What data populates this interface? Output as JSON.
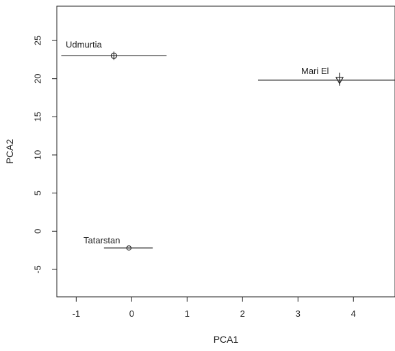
{
  "chart_data": {
    "type": "scatter",
    "xlabel": "PCA1",
    "ylabel": "PCA2",
    "xlim": [
      -1.35,
      4.75
    ],
    "ylim": [
      -8.6,
      29.5
    ],
    "xticks": [
      -1,
      0,
      1,
      2,
      3,
      4
    ],
    "yticks": [
      -5,
      0,
      5,
      10,
      15,
      20,
      25
    ],
    "grid": false,
    "points": [
      {
        "label": "Udmurtia",
        "x": -0.32,
        "y": 23.0,
        "xerr_low": -1.27,
        "xerr_high": 0.63,
        "marker": "circle-plus"
      },
      {
        "label": "Mari El",
        "x": 3.75,
        "y": 19.8,
        "xerr_low": 2.28,
        "xerr_high": 4.75,
        "marker": "triangle-down-plus"
      },
      {
        "label": "Tatarstan",
        "x": -0.05,
        "y": -2.2,
        "xerr_low": -0.5,
        "xerr_high": 0.38,
        "marker": "circle-x"
      }
    ]
  }
}
